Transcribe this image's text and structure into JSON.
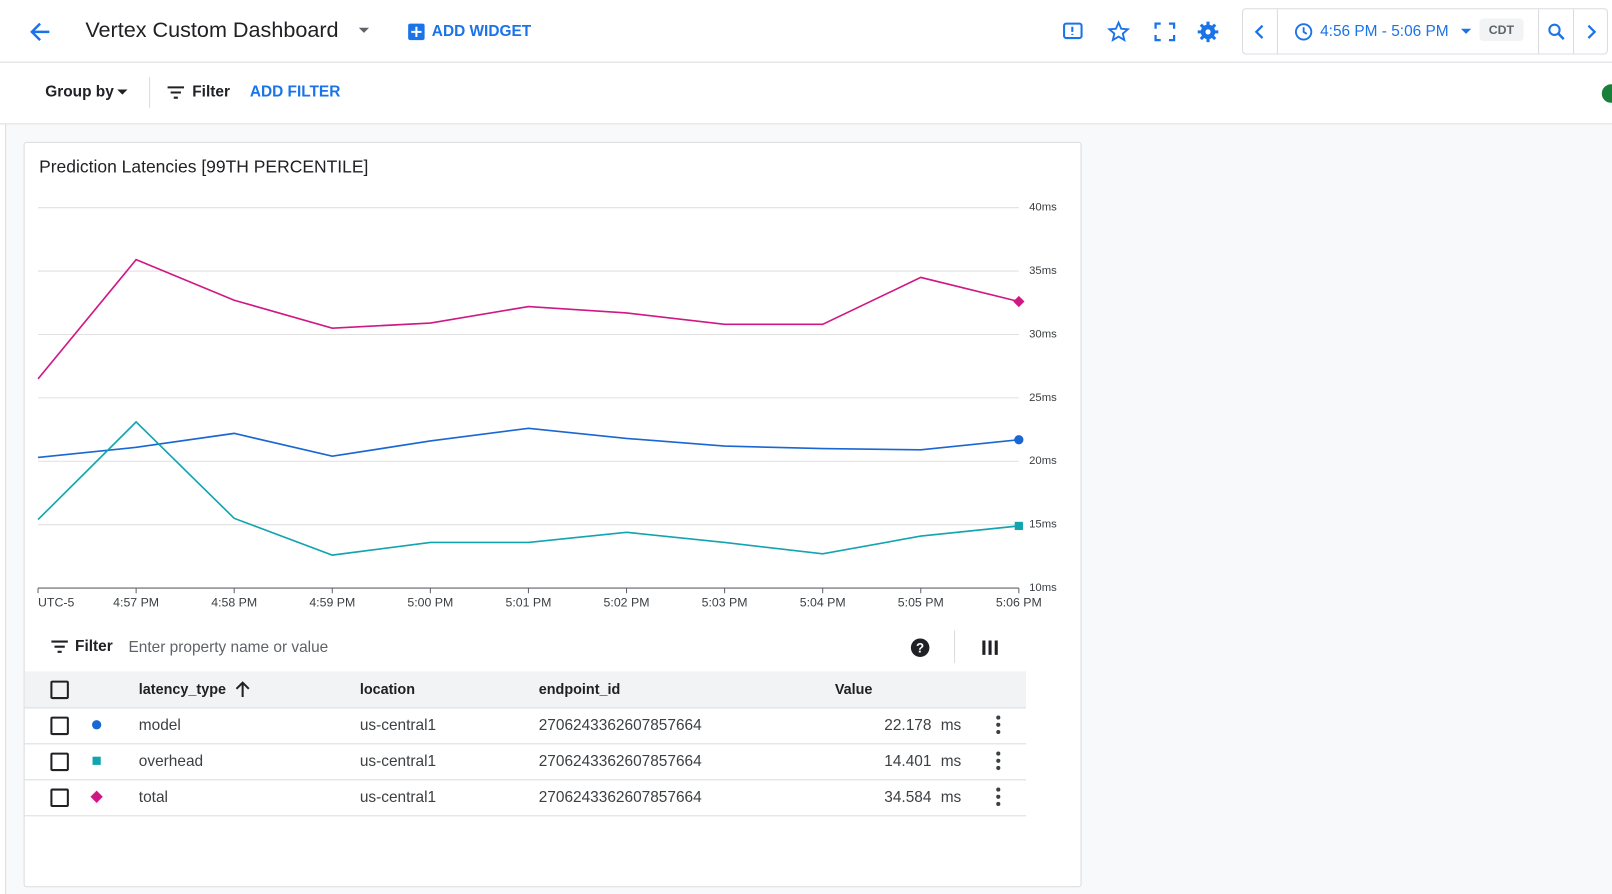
{
  "header": {
    "title": "Vertex Custom Dashboard",
    "add_widget": "ADD WIDGET",
    "time_range": "4:56 PM - 5:06 PM",
    "timezone": "CDT"
  },
  "toolbar": {
    "group_by": "Group by",
    "filter": "Filter",
    "add_filter": "ADD FILTER"
  },
  "chart_data": {
    "type": "line",
    "title": "Prediction Latencies [99TH PERCENTILE]",
    "timezone_label": "UTC-5",
    "categories": [
      null,
      "4:57 PM",
      "4:58 PM",
      "4:59 PM",
      "5:00 PM",
      "5:01 PM",
      "5:02 PM",
      "5:03 PM",
      "5:04 PM",
      "5:05 PM",
      "5:06 PM"
    ],
    "series": [
      {
        "name": "model",
        "color": "#1967d2",
        "marker": "circle",
        "values": [
          20.3,
          21.1,
          22.2,
          20.4,
          21.6,
          22.6,
          21.8,
          21.2,
          21.0,
          20.9,
          21.7
        ]
      },
      {
        "name": "overhead",
        "color": "#12a4af",
        "marker": "square",
        "values": [
          15.4,
          23.1,
          15.5,
          12.6,
          13.6,
          13.6,
          14.4,
          13.6,
          12.7,
          14.1,
          14.9
        ]
      },
      {
        "name": "total",
        "color": "#d01884",
        "marker": "diamond",
        "values": [
          26.5,
          35.9,
          32.7,
          30.5,
          30.9,
          32.2,
          31.7,
          30.8,
          30.8,
          34.5,
          32.6
        ]
      }
    ],
    "ylim": [
      10,
      40
    ],
    "yticks": [
      {
        "value": 10,
        "label": "10ms"
      },
      {
        "value": 15,
        "label": "15ms"
      },
      {
        "value": 20,
        "label": "20ms"
      },
      {
        "value": 25,
        "label": "25ms"
      },
      {
        "value": 30,
        "label": "30ms"
      },
      {
        "value": 35,
        "label": "35ms"
      },
      {
        "value": 40,
        "label": "40ms"
      }
    ],
    "grid": true
  },
  "table": {
    "filter": "Filter",
    "placeholder": "Enter property name or value",
    "columns": [
      "latency_type",
      "location",
      "endpoint_id",
      "Value"
    ],
    "rows": [
      {
        "location": "us-central1",
        "endpoint_id": "2706243362607857664",
        "value": "22.178",
        "unit": "ms"
      },
      {
        "location": "us-central1",
        "endpoint_id": "2706243362607857664",
        "value": "14.401",
        "unit": "ms"
      },
      {
        "location": "us-central1",
        "endpoint_id": "2706243362607857664",
        "value": "34.584",
        "unit": "ms"
      }
    ]
  }
}
